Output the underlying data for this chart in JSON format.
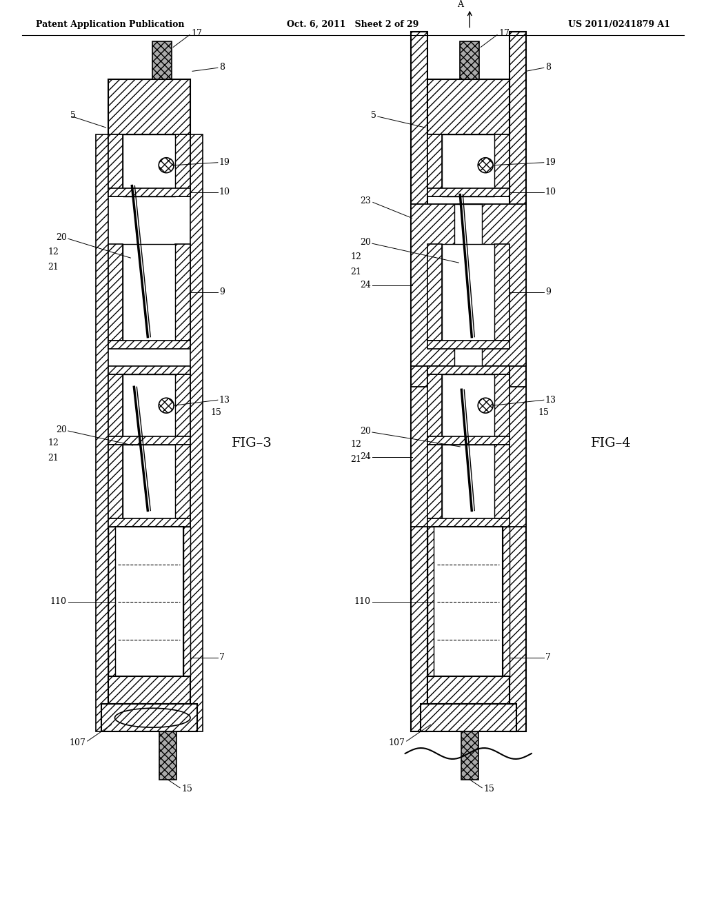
{
  "header_left": "Patent Application Publication",
  "header_mid": "Oct. 6, 2011   Sheet 2 of 29",
  "header_right": "US 2011/0241879 A1",
  "fig3_label": "FIG–3",
  "fig4_label": "FIG–4",
  "background": "#ffffff",
  "line_color": "#000000",
  "label_fontsize": 9,
  "header_fontsize": 9,
  "fig_label_fontsize": 14
}
